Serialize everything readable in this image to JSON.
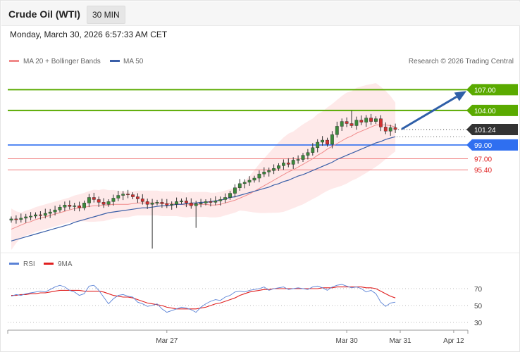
{
  "header": {
    "instrument": "Crude Oil (WTI)",
    "timeframe": "30 MIN",
    "datetime": "Monday, March 30, 2026 6:57:33 AM CET"
  },
  "colors": {
    "ma20": "#f08a8a",
    "bands_fill": "#fde1e1",
    "ma50": "#3a5fa8",
    "candle_up": "#3c8a3c",
    "candle_down": "#d03030",
    "resistance": "#5aaa00",
    "support_blue": "#2f6ff0",
    "support_red": "#f08080",
    "rsi": "#5a82d6",
    "rsi_ma": "#e02020",
    "arrow": "#2f5fa8"
  },
  "chart_data": [
    {
      "type": "candlestick",
      "legend": {
        "ma20_label": "MA 20 + Bollinger Bands",
        "ma50_label": "MA 50"
      },
      "copyright": "Research © 2026 Trading Central",
      "y_range": [
        83.5,
        110.0
      ],
      "x_ticks": [
        {
          "label": "Mar 27",
          "index": 32
        },
        {
          "label": "Mar 30",
          "index": 69
        },
        {
          "label": "Mar 31",
          "index": 80
        },
        {
          "label": "Apr 12",
          "index": 91
        }
      ],
      "levels": [
        {
          "value": 107.0,
          "label": "107.00",
          "kind": "resistance"
        },
        {
          "value": 104.0,
          "label": "104.00",
          "kind": "resistance"
        },
        {
          "value": 101.24,
          "label": "101.24",
          "kind": "last"
        },
        {
          "value": 99.0,
          "label": "99.00",
          "kind": "support_blue"
        },
        {
          "value": 97.0,
          "label": "97.00",
          "kind": "support_red"
        },
        {
          "value": 95.4,
          "label": "95.40",
          "kind": "support_red"
        }
      ],
      "projection": {
        "from": 101.3,
        "to": 107.0
      },
      "close": [
        88.3,
        88.2,
        88.4,
        88.6,
        88.7,
        88.9,
        88.8,
        89.1,
        89.3,
        89.6,
        90.0,
        90.3,
        90.1,
        90.2,
        89.9,
        90.6,
        91.4,
        91.1,
        90.7,
        90.4,
        90.8,
        91.3,
        91.7,
        91.9,
        91.8,
        91.5,
        91.2,
        90.8,
        90.4,
        90.6,
        90.7,
        90.5,
        90.3,
        90.4,
        90.8,
        90.9,
        90.6,
        90.2,
        90.5,
        90.6,
        90.8,
        90.7,
        90.9,
        91.1,
        91.4,
        92.0,
        92.8,
        93.4,
        93.6,
        93.9,
        94.2,
        94.8,
        95.1,
        95.3,
        95.6,
        96.0,
        96.4,
        96.2,
        96.8,
        96.9,
        97.5,
        97.9,
        98.6,
        99.4,
        99.7,
        99.1,
        100.5,
        101.7,
        102.4,
        102.1,
        101.8,
        102.6,
        102.3,
        102.9,
        102.4,
        102.8,
        101.6,
        101.0,
        101.5,
        101.24
      ],
      "ma20": [
        86.8,
        87.1,
        87.4,
        87.7,
        87.9,
        88.2,
        88.4,
        88.6,
        88.8,
        89.0,
        89.2,
        89.4,
        89.6,
        89.8,
        89.9,
        90.0,
        90.1,
        90.2,
        90.2,
        90.3,
        90.3,
        90.4,
        90.4,
        90.4,
        90.4,
        90.5,
        90.6,
        90.6,
        90.6,
        90.6,
        90.6,
        90.5,
        90.5,
        90.5,
        90.5,
        90.4,
        90.3,
        90.4,
        90.4,
        90.4,
        90.4,
        90.3,
        90.3,
        90.4,
        90.6,
        90.8,
        91.0,
        91.3,
        91.6,
        91.9,
        92.3,
        92.7,
        93.1,
        93.5,
        93.9,
        94.3,
        94.7,
        95.1,
        95.4,
        95.8,
        96.2,
        96.6,
        97.0,
        97.5,
        97.9,
        98.4,
        98.8,
        99.2,
        99.6,
        100.0,
        100.3,
        100.7,
        101.0,
        101.3,
        101.6,
        101.9,
        101.9,
        101.9,
        101.8,
        101.6
      ],
      "ma50": [
        85.1,
        85.3,
        85.5,
        85.7,
        85.9,
        86.1,
        86.3,
        86.5,
        86.7,
        86.9,
        87.1,
        87.3,
        87.5,
        87.8,
        88.0,
        88.2,
        88.4,
        88.6,
        88.8,
        89.0,
        89.2,
        89.3,
        89.4,
        89.5,
        89.6,
        89.7,
        89.8,
        89.9,
        89.9,
        90.0,
        90.1,
        90.2,
        90.2,
        90.3,
        90.4,
        90.4,
        90.5,
        90.6,
        90.6,
        90.7,
        90.7,
        90.8,
        90.9,
        91.0,
        91.2,
        91.4,
        91.5,
        91.7,
        91.9,
        92.1,
        92.3,
        92.5,
        92.7,
        92.9,
        93.2,
        93.4,
        93.7,
        93.9,
        94.2,
        94.5,
        94.7,
        95.0,
        95.3,
        95.6,
        95.9,
        96.2,
        96.5,
        96.9,
        97.2,
        97.5,
        97.8,
        98.1,
        98.4,
        98.7,
        99.0,
        99.3,
        99.5,
        99.8,
        100.0,
        100.2
      ]
    },
    {
      "type": "line",
      "legend": {
        "rsi_label": "RSI",
        "ma_label": "9MA"
      },
      "y_ticks": [
        {
          "label": "70",
          "value": 70
        },
        {
          "label": "50",
          "value": 50
        },
        {
          "label": "30",
          "value": 30
        }
      ],
      "rsi": [
        61,
        63,
        62,
        64,
        65,
        66,
        67,
        66,
        69,
        72,
        74,
        72,
        68,
        66,
        62,
        64,
        73,
        74,
        68,
        60,
        52,
        58,
        62,
        63,
        61,
        60,
        54,
        52,
        49,
        50,
        52,
        46,
        42,
        44,
        46,
        48,
        47,
        45,
        42,
        48,
        52,
        55,
        57,
        56,
        60,
        62,
        66,
        67,
        66,
        68,
        69,
        70,
        72,
        68,
        70,
        71,
        72,
        69,
        70,
        71,
        70,
        69,
        72,
        73,
        71,
        68,
        72,
        74,
        75,
        73,
        71,
        72,
        70,
        66,
        68,
        64,
        54,
        49,
        53,
        54
      ],
      "rsi_ma": [
        62,
        62,
        63,
        63,
        64,
        64,
        65,
        65,
        66,
        67,
        68,
        68,
        68,
        68,
        68,
        67,
        67,
        67,
        67,
        66,
        64,
        62,
        61,
        60,
        60,
        59,
        57,
        55,
        53,
        52,
        51,
        50,
        48,
        47,
        46,
        46,
        46,
        46,
        46,
        47,
        48,
        50,
        52,
        53,
        55,
        57,
        59,
        62,
        64,
        66,
        67,
        68,
        69,
        69,
        70,
        70,
        70,
        70,
        70,
        70,
        70,
        70,
        70,
        70,
        71,
        71,
        71,
        72,
        72,
        72,
        72,
        72,
        72,
        71,
        71,
        70,
        67,
        64,
        61,
        59
      ]
    }
  ]
}
